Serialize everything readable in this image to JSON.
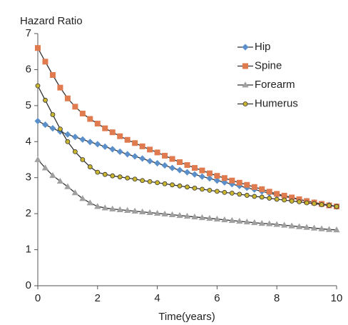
{
  "chart_data": {
    "type": "line",
    "y_label": "Hazard Ratio",
    "x_label": "Time(years)",
    "x": [
      0,
      0.25,
      0.5,
      0.75,
      1,
      1.25,
      1.5,
      1.75,
      2,
      2.25,
      2.5,
      2.75,
      3,
      3.25,
      3.5,
      3.75,
      4,
      4.25,
      4.5,
      4.75,
      5,
      5.25,
      5.5,
      5.75,
      6,
      6.25,
      6.5,
      6.75,
      7,
      7.25,
      7.5,
      7.75,
      8,
      8.25,
      8.5,
      8.75,
      9,
      9.25,
      9.5,
      9.75,
      10
    ],
    "line_color": "#333333",
    "legend": "top-right",
    "grid": false,
    "series": [
      {
        "name": "Hip",
        "color": "#5b8fc9",
        "marker": "diamond",
        "values": [
          4.57,
          4.47,
          4.37,
          4.28,
          4.2,
          4.13,
          4.06,
          3.99,
          3.93,
          3.86,
          3.79,
          3.72,
          3.65,
          3.59,
          3.53,
          3.46,
          3.4,
          3.34,
          3.27,
          3.21,
          3.15,
          3.09,
          3.03,
          2.98,
          2.92,
          2.87,
          2.82,
          2.77,
          2.72,
          2.67,
          2.62,
          2.57,
          2.52,
          2.48,
          2.44,
          2.39,
          2.35,
          2.31,
          2.27,
          2.24,
          2.2
        ]
      },
      {
        "name": "Spine",
        "color": "#e07b4f",
        "marker": "square",
        "values": [
          6.6,
          6.22,
          5.85,
          5.5,
          5.2,
          4.97,
          4.78,
          4.63,
          4.5,
          4.37,
          4.26,
          4.15,
          4.05,
          3.96,
          3.87,
          3.78,
          3.7,
          3.61,
          3.52,
          3.43,
          3.35,
          3.27,
          3.2,
          3.12,
          3.05,
          2.99,
          2.92,
          2.86,
          2.8,
          2.74,
          2.68,
          2.61,
          2.55,
          2.5,
          2.45,
          2.4,
          2.35,
          2.31,
          2.27,
          2.23,
          2.2
        ]
      },
      {
        "name": "Forearm",
        "color": "#a0a0a0",
        "marker": "triangle",
        "values": [
          3.5,
          3.27,
          3.06,
          2.9,
          2.75,
          2.58,
          2.42,
          2.3,
          2.2,
          2.16,
          2.13,
          2.11,
          2.09,
          2.07,
          2.05,
          2.03,
          2.01,
          1.99,
          1.97,
          1.95,
          1.93,
          1.91,
          1.89,
          1.87,
          1.85,
          1.83,
          1.81,
          1.79,
          1.77,
          1.75,
          1.73,
          1.72,
          1.7,
          1.68,
          1.66,
          1.64,
          1.62,
          1.6,
          1.58,
          1.56,
          1.55
        ]
      },
      {
        "name": "Humerus",
        "color": "#c9b52e",
        "marker": "circle",
        "values": [
          5.55,
          5.15,
          4.75,
          4.35,
          4.0,
          3.72,
          3.5,
          3.3,
          3.15,
          3.09,
          3.05,
          3.02,
          2.99,
          2.96,
          2.92,
          2.89,
          2.86,
          2.83,
          2.8,
          2.77,
          2.74,
          2.71,
          2.68,
          2.65,
          2.62,
          2.59,
          2.57,
          2.54,
          2.51,
          2.48,
          2.46,
          2.43,
          2.4,
          2.38,
          2.35,
          2.33,
          2.3,
          2.28,
          2.25,
          2.23,
          2.2
        ]
      }
    ],
    "xlim": [
      0,
      10
    ],
    "xticks": [
      0,
      2,
      4,
      6,
      8,
      10
    ],
    "ylim": [
      0,
      7
    ],
    "yticks": [
      0,
      1,
      2,
      3,
      4,
      5,
      6,
      7
    ]
  }
}
